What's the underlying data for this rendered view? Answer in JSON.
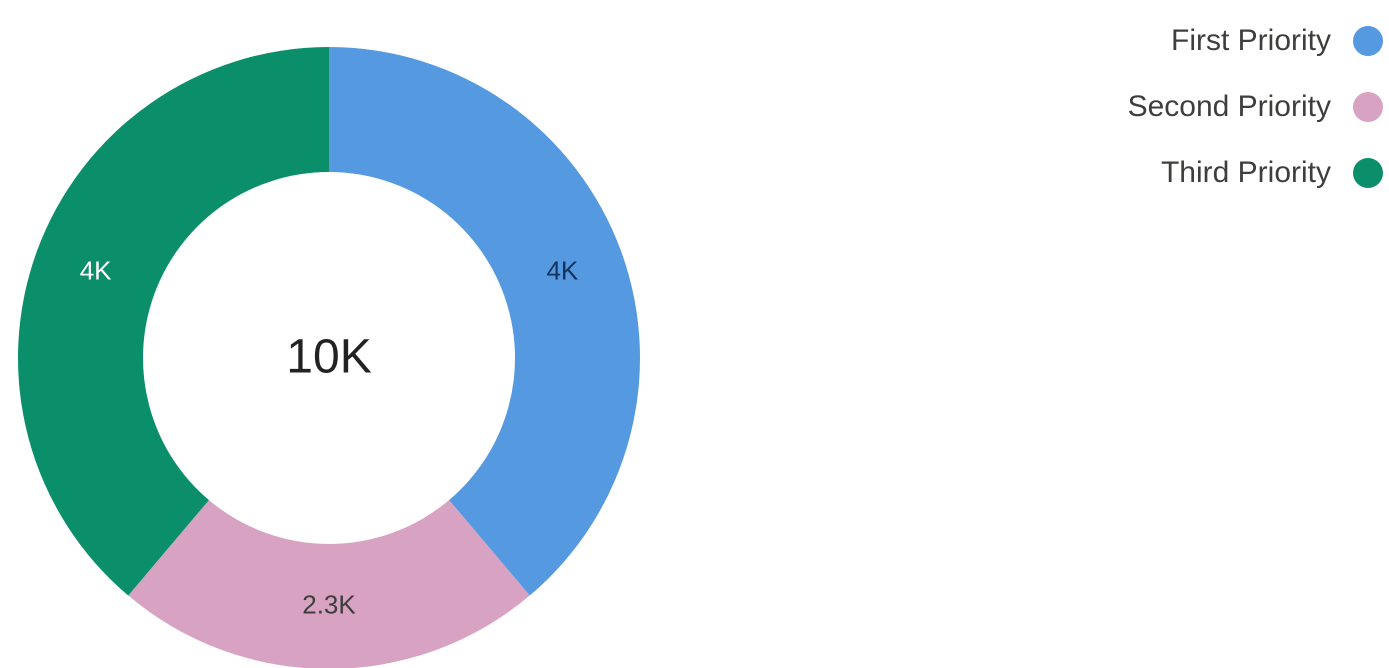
{
  "chart_data": {
    "type": "pie",
    "variant": "donut",
    "total_label": "10K",
    "slices": [
      {
        "name": "First Priority",
        "value": 4000,
        "label": "4K",
        "color": "#5599e0",
        "label_color": "#16325c"
      },
      {
        "name": "Second Priority",
        "value": 2300,
        "label": "2.3K",
        "color": "#d8a3c3",
        "label_color": "#3e3e3c"
      },
      {
        "name": "Third Priority",
        "value": 4000,
        "label": "4K",
        "color": "#0b8f6b",
        "label_color": "#ffffff"
      }
    ],
    "legend_position": "top-right"
  },
  "legend": {
    "items": [
      {
        "label": "First Priority",
        "color": "#5599e0"
      },
      {
        "label": "Second Priority",
        "color": "#d8a3c3"
      },
      {
        "label": "Third Priority",
        "color": "#0b8f6b"
      }
    ]
  }
}
